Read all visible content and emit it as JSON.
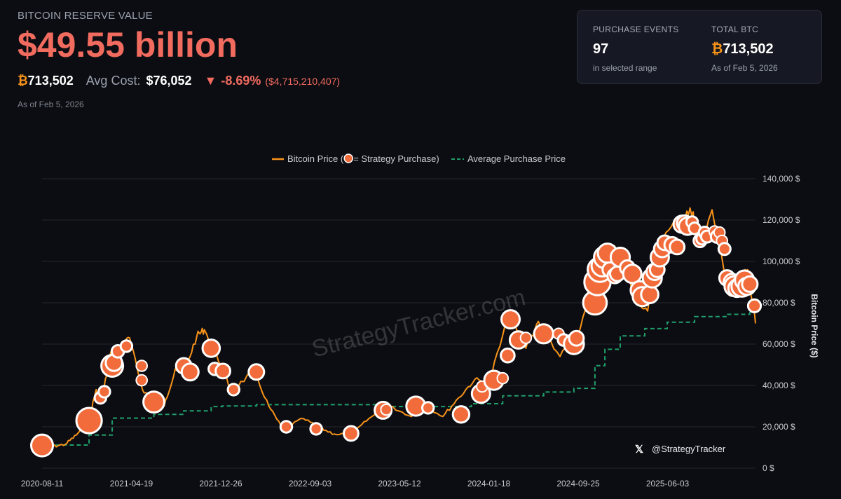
{
  "header": {
    "eyebrow": "BITCOIN RESERVE VALUE",
    "reserve_value": "$49.55 billion",
    "btc_symbol": "₿",
    "btc_amount": "713,502",
    "avg_cost_label": "Avg Cost:",
    "avg_cost_value": "$76,052",
    "change_arrow": "▼",
    "change_pct": "-8.69%",
    "change_usd": "($4,715,210,407)",
    "as_of": "As of Feb 5, 2026"
  },
  "summary_card": {
    "purchase_events_label": "PURCHASE EVENTS",
    "purchase_events_value": "97",
    "purchase_events_sub": "in selected range",
    "total_btc_label": "TOTAL BTC",
    "total_btc_symbol": "₿",
    "total_btc_value": "713,502",
    "total_btc_sub": "As of Feb 5, 2026"
  },
  "colors": {
    "price_line": "#f7931a",
    "purchase_marker": "#f26b3a",
    "avg_line": "#1f9e6a",
    "negative": "#f26b5f"
  },
  "legend": {
    "price_label_pre": "Bitcoin Price (",
    "price_label_post": " = Strategy Purchase)",
    "avg_label": "Average Purchase Price"
  },
  "watermark": "StrategyTracker.com",
  "handle": {
    "icon": "x-logo-icon",
    "text": "@StrategyTracker"
  },
  "chart_data": {
    "type": "line",
    "title": "",
    "xlabel": "",
    "ylabel": "Bitcoin Price ($)",
    "ylim": [
      0,
      140000
    ],
    "x_range": [
      "2020-08-11",
      "2026-02-05"
    ],
    "x_ticks": [
      "2020-08-11",
      "2021-04-19",
      "2021-12-26",
      "2022-09-03",
      "2023-05-12",
      "2024-01-18",
      "2024-09-25",
      "2025-06-03"
    ],
    "y_ticks": [
      0,
      20000,
      40000,
      60000,
      80000,
      100000,
      120000,
      140000
    ],
    "y_tick_labels": [
      "0 $",
      "20,000 $",
      "40,000 $",
      "60,000 $",
      "80,000 $",
      "100,000 $",
      "120,000 $",
      "140,000 $"
    ],
    "series": [
      {
        "name": "Bitcoin Price",
        "points": [
          [
            "2020-08-11",
            11000
          ],
          [
            "2020-09-10",
            10500
          ],
          [
            "2020-10-15",
            11500
          ],
          [
            "2020-11-15",
            16000
          ],
          [
            "2020-12-20",
            23000
          ],
          [
            "2021-01-10",
            38000
          ],
          [
            "2021-01-25",
            32000
          ],
          [
            "2021-02-20",
            56000
          ],
          [
            "2021-03-15",
            58000
          ],
          [
            "2021-04-14",
            63000
          ],
          [
            "2021-05-20",
            38000
          ],
          [
            "2021-06-22",
            32000
          ],
          [
            "2021-07-20",
            30000
          ],
          [
            "2021-08-20",
            48000
          ],
          [
            "2021-09-15",
            47000
          ],
          [
            "2021-10-20",
            64000
          ],
          [
            "2021-11-10",
            67000
          ],
          [
            "2021-12-26",
            50000
          ],
          [
            "2022-01-25",
            37000
          ],
          [
            "2022-03-28",
            47000
          ],
          [
            "2022-05-10",
            30000
          ],
          [
            "2022-06-18",
            19000
          ],
          [
            "2022-08-15",
            24000
          ],
          [
            "2022-09-30",
            19500
          ],
          [
            "2022-11-10",
            16500
          ],
          [
            "2022-12-30",
            16500
          ],
          [
            "2023-02-15",
            24000
          ],
          [
            "2023-04-14",
            30000
          ],
          [
            "2023-06-15",
            25000
          ],
          [
            "2023-07-15",
            31000
          ],
          [
            "2023-09-11",
            25000
          ],
          [
            "2023-10-25",
            34000
          ],
          [
            "2023-12-10",
            43000
          ],
          [
            "2024-01-18",
            41000
          ],
          [
            "2024-03-13",
            73000
          ],
          [
            "2024-05-01",
            58000
          ],
          [
            "2024-06-05",
            71000
          ],
          [
            "2024-08-05",
            54000
          ],
          [
            "2024-09-25",
            64000
          ],
          [
            "2024-11-12",
            89000
          ],
          [
            "2024-12-17",
            106000
          ],
          [
            "2025-01-20",
            104000
          ],
          [
            "2025-02-28",
            84000
          ],
          [
            "2025-04-08",
            76000
          ],
          [
            "2025-05-22",
            111000
          ],
          [
            "2025-07-14",
            122000
          ],
          [
            "2025-08-14",
            124000
          ],
          [
            "2025-09-01",
            108000
          ],
          [
            "2025-10-06",
            125000
          ],
          [
            "2025-11-21",
            84000
          ],
          [
            "2025-12-20",
            88000
          ],
          [
            "2026-01-14",
            96000
          ],
          [
            "2026-02-05",
            70000
          ]
        ]
      },
      {
        "name": "Average Purchase Price",
        "step": true,
        "points": [
          [
            "2020-08-11",
            11000
          ],
          [
            "2020-09-14",
            11200
          ],
          [
            "2020-12-21",
            16000
          ],
          [
            "2021-02-24",
            24200
          ],
          [
            "2021-06-21",
            26000
          ],
          [
            "2021-09-13",
            27700
          ],
          [
            "2021-11-29",
            29800
          ],
          [
            "2021-12-30",
            30100
          ],
          [
            "2022-04-05",
            30700
          ],
          [
            "2023-03-27",
            29800
          ],
          [
            "2023-11-30",
            31200
          ],
          [
            "2024-02-26",
            35000
          ],
          [
            "2024-06-20",
            36800
          ],
          [
            "2024-09-13",
            38600
          ],
          [
            "2024-11-11",
            49600
          ],
          [
            "2024-12-09",
            57500
          ],
          [
            "2025-01-21",
            64000
          ],
          [
            "2025-03-31",
            67500
          ],
          [
            "2025-06-02",
            70600
          ],
          [
            "2025-08-18",
            73300
          ],
          [
            "2025-11-17",
            74400
          ],
          [
            "2026-01-20",
            76000
          ],
          [
            "2026-02-05",
            76052
          ]
        ]
      }
    ],
    "purchases": [
      {
        "date": "2020-08-11",
        "price": 11000,
        "size": 3.6
      },
      {
        "date": "2020-12-21",
        "price": 23000,
        "size": 4.4
      },
      {
        "date": "2021-01-22",
        "price": 34000,
        "size": 1.3
      },
      {
        "date": "2021-02-02",
        "price": 37000,
        "size": 1.3
      },
      {
        "date": "2021-02-24",
        "price": 49500,
        "size": 3.6
      },
      {
        "date": "2021-03-01",
        "price": 51000,
        "size": 2.4
      },
      {
        "date": "2021-03-12",
        "price": 56500,
        "size": 1.5
      },
      {
        "date": "2021-04-05",
        "price": 59000,
        "size": 1.3
      },
      {
        "date": "2021-05-18",
        "price": 49500,
        "size": 1.2
      },
      {
        "date": "2021-05-18",
        "price": 42500,
        "size": 1.2
      },
      {
        "date": "2021-06-21",
        "price": 32000,
        "size": 3.4
      },
      {
        "date": "2021-09-13",
        "price": 49500,
        "size": 2.2
      },
      {
        "date": "2021-10-01",
        "price": 46500,
        "size": 2.5
      },
      {
        "date": "2021-11-29",
        "price": 58000,
        "size": 2.6
      },
      {
        "date": "2021-12-09",
        "price": 48000,
        "size": 1.5
      },
      {
        "date": "2022-01-01",
        "price": 47000,
        "size": 2.0
      },
      {
        "date": "2022-01-31",
        "price": 38000,
        "size": 1.3
      },
      {
        "date": "2022-04-05",
        "price": 46500,
        "size": 2.2
      },
      {
        "date": "2022-06-28",
        "price": 20000,
        "size": 1.3
      },
      {
        "date": "2022-09-20",
        "price": 19000,
        "size": 1.3
      },
      {
        "date": "2022-12-27",
        "price": 16800,
        "size": 2.0
      },
      {
        "date": "2023-03-27",
        "price": 28000,
        "size": 2.5
      },
      {
        "date": "2023-04-05",
        "price": 28300,
        "size": 1.2
      },
      {
        "date": "2023-06-27",
        "price": 30000,
        "size": 3.0
      },
      {
        "date": "2023-07-31",
        "price": 29200,
        "size": 1.3
      },
      {
        "date": "2023-11-01",
        "price": 26000,
        "size": 2.4
      },
      {
        "date": "2023-12-27",
        "price": 36000,
        "size": 2.8
      },
      {
        "date": "2023-12-30",
        "price": 39500,
        "size": 1.2
      },
      {
        "date": "2024-02-01",
        "price": 42500,
        "size": 3.0
      },
      {
        "date": "2024-02-26",
        "price": 43500,
        "size": 1.2
      },
      {
        "date": "2024-03-11",
        "price": 54500,
        "size": 1.8
      },
      {
        "date": "2024-03-19",
        "price": 72000,
        "size": 2.8
      },
      {
        "date": "2024-04-10",
        "price": 62000,
        "size": 2.6
      },
      {
        "date": "2024-05-01",
        "price": 63000,
        "size": 1.2
      },
      {
        "date": "2024-06-20",
        "price": 65000,
        "size": 3.0
      },
      {
        "date": "2024-08-01",
        "price": 65000,
        "size": 1.2
      },
      {
        "date": "2024-08-15",
        "price": 62000,
        "size": 1.3
      },
      {
        "date": "2024-09-13",
        "price": 60000,
        "size": 3.2
      },
      {
        "date": "2024-09-20",
        "price": 62800,
        "size": 2.0
      },
      {
        "date": "2024-11-11",
        "price": 80000,
        "size": 4.0
      },
      {
        "date": "2024-11-18",
        "price": 90000,
        "size": 4.6
      },
      {
        "date": "2024-11-25",
        "price": 96000,
        "size": 4.2
      },
      {
        "date": "2024-12-02",
        "price": 98000,
        "size": 3.6
      },
      {
        "date": "2024-12-09",
        "price": 102000,
        "size": 3.6
      },
      {
        "date": "2024-12-16",
        "price": 104000,
        "size": 3.0
      },
      {
        "date": "2024-12-23",
        "price": 96000,
        "size": 2.0
      },
      {
        "date": "2025-01-06",
        "price": 93000,
        "size": 2.0
      },
      {
        "date": "2025-01-13",
        "price": 94000,
        "size": 2.0
      },
      {
        "date": "2025-01-21",
        "price": 102000,
        "size": 3.0
      },
      {
        "date": "2025-02-10",
        "price": 97000,
        "size": 2.0
      },
      {
        "date": "2025-02-24",
        "price": 94000,
        "size": 2.8
      },
      {
        "date": "2025-03-17",
        "price": 86000,
        "size": 2.8
      },
      {
        "date": "2025-03-24",
        "price": 83000,
        "size": 3.0
      },
      {
        "date": "2025-04-14",
        "price": 84000,
        "size": 2.6
      },
      {
        "date": "2025-04-21",
        "price": 92000,
        "size": 3.0
      },
      {
        "date": "2025-04-28",
        "price": 95000,
        "size": 2.4
      },
      {
        "date": "2025-05-05",
        "price": 96000,
        "size": 2.0
      },
      {
        "date": "2025-05-12",
        "price": 102000,
        "size": 2.8
      },
      {
        "date": "2025-05-19",
        "price": 106000,
        "size": 2.4
      },
      {
        "date": "2025-05-26",
        "price": 109000,
        "size": 2.0
      },
      {
        "date": "2025-06-16",
        "price": 108000,
        "size": 2.2
      },
      {
        "date": "2025-06-30",
        "price": 107000,
        "size": 2.0
      },
      {
        "date": "2025-07-14",
        "price": 118000,
        "size": 2.6
      },
      {
        "date": "2025-07-21",
        "price": 118500,
        "size": 2.2
      },
      {
        "date": "2025-07-29",
        "price": 117000,
        "size": 2.6
      },
      {
        "date": "2025-08-11",
        "price": 119000,
        "size": 1.3
      },
      {
        "date": "2025-08-18",
        "price": 116000,
        "size": 1.3
      },
      {
        "date": "2025-09-02",
        "price": 110000,
        "size": 1.6
      },
      {
        "date": "2025-09-08",
        "price": 111000,
        "size": 1.3
      },
      {
        "date": "2025-09-15",
        "price": 114000,
        "size": 1.3
      },
      {
        "date": "2025-09-22",
        "price": 112000,
        "size": 1.4
      },
      {
        "date": "2025-10-13",
        "price": 114500,
        "size": 1.2
      },
      {
        "date": "2025-10-20",
        "price": 112000,
        "size": 1.5
      },
      {
        "date": "2025-10-27",
        "price": 114000,
        "size": 1.2
      },
      {
        "date": "2025-11-03",
        "price": 110000,
        "size": 1.2
      },
      {
        "date": "2025-11-10",
        "price": 106000,
        "size": 1.4
      },
      {
        "date": "2025-11-17",
        "price": 92000,
        "size": 2.2
      },
      {
        "date": "2025-12-01",
        "price": 90000,
        "size": 2.4
      },
      {
        "date": "2025-12-08",
        "price": 88000,
        "size": 3.2
      },
      {
        "date": "2025-12-15",
        "price": 87000,
        "size": 2.6
      },
      {
        "date": "2025-12-29",
        "price": 88000,
        "size": 3.4
      },
      {
        "date": "2026-01-05",
        "price": 91000,
        "size": 3.0
      },
      {
        "date": "2026-01-12",
        "price": 88000,
        "size": 2.6
      },
      {
        "date": "2026-01-20",
        "price": 89000,
        "size": 2.2
      },
      {
        "date": "2026-02-02",
        "price": 78500,
        "size": 1.6
      }
    ]
  }
}
